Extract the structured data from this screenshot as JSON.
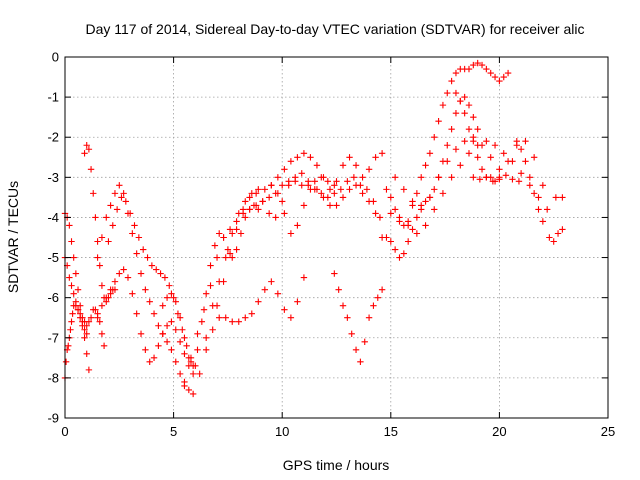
{
  "chart_data": {
    "type": "scatter",
    "title": "Day 117 of 2014, Sidereal Day-to-day VTEC variation (SDTVAR) for receiver alic",
    "xlabel": "GPS time / hours",
    "ylabel": "SDTVAR / TECUs",
    "xlim": [
      0,
      25
    ],
    "ylim": [
      -9,
      0
    ],
    "x_ticks": [
      "0",
      "5",
      "10",
      "15",
      "20",
      "25"
    ],
    "y_ticks": [
      "0",
      "-1",
      "-2",
      "-3",
      "-4",
      "-5",
      "-6",
      "-7",
      "-8",
      "-9"
    ],
    "grid": true,
    "legend": "none",
    "marker": "plus",
    "color": "#ff0000",
    "series": [
      {
        "x": [
          0.0,
          0.05,
          0.1,
          0.15,
          0.2,
          0.25,
          0.3,
          0.35,
          0.4,
          0.5,
          0.6,
          0.7,
          0.8,
          0.9,
          1.0,
          1.1,
          1.2,
          1.3,
          1.4,
          1.5,
          1.6,
          1.7,
          1.8
        ],
        "y": [
          -8.0,
          -7.6,
          -7.3,
          -7.2,
          -7.0,
          -6.8,
          -6.6,
          -6.4,
          -6.2,
          -6.2,
          -6.3,
          -6.4,
          -6.5,
          -6.6,
          -6.7,
          -6.6,
          -6.5,
          -6.3,
          -6.3,
          -6.4,
          -6.6,
          -6.9,
          -7.2
        ]
      },
      {
        "x": [
          0.0,
          0.1,
          0.2,
          0.3,
          0.4,
          0.5,
          0.6,
          0.7,
          0.8,
          0.9,
          1.0,
          1.1
        ],
        "y": [
          -3.9,
          -4.0,
          -4.2,
          -4.6,
          -5.0,
          -5.4,
          -5.8,
          -6.2,
          -6.6,
          -7.0,
          -7.4,
          -7.8
        ]
      },
      {
        "x": [
          0.0,
          0.1,
          0.2,
          0.3,
          0.4,
          0.5,
          0.6,
          0.7,
          0.8,
          0.9,
          1.0
        ],
        "y": [
          -5.0,
          -5.2,
          -5.5,
          -5.7,
          -5.9,
          -6.1,
          -6.3,
          -6.5,
          -6.7,
          -6.8,
          -6.9
        ]
      },
      {
        "x": [
          0.9,
          1.0,
          1.1,
          1.2,
          1.3,
          1.4,
          1.5,
          1.6,
          1.7,
          1.8,
          1.9,
          2.0,
          2.1,
          2.2,
          2.3
        ],
        "y": [
          -2.4,
          -2.2,
          -2.3,
          -2.8,
          -3.4,
          -4.0,
          -4.6,
          -5.2,
          -5.7,
          -6.0,
          -6.1,
          -6.0,
          -5.9,
          -5.8,
          -5.8
        ]
      },
      {
        "x": [
          1.5,
          1.7,
          1.9,
          2.1,
          2.3,
          2.5,
          2.7,
          2.9,
          3.1,
          3.3,
          3.5,
          3.7,
          3.9,
          4.1,
          4.3,
          4.5,
          4.7,
          4.9,
          5.1,
          5.3,
          5.5,
          5.7,
          5.9
        ],
        "y": [
          -5.0,
          -4.5,
          -4.0,
          -3.7,
          -3.4,
          -3.2,
          -3.4,
          -3.9,
          -4.4,
          -4.9,
          -5.4,
          -5.8,
          -6.1,
          -6.4,
          -6.7,
          -6.9,
          -7.1,
          -7.3,
          -7.6,
          -7.9,
          -8.1,
          -8.3,
          -8.4
        ]
      },
      {
        "x": [
          2.0,
          2.2,
          2.4,
          2.6,
          2.8,
          3.0,
          3.2,
          3.4,
          3.6,
          3.8,
          4.0,
          4.2,
          4.4,
          4.6,
          4.8,
          5.0,
          5.2,
          5.4,
          5.6,
          5.8,
          6.0
        ],
        "y": [
          -4.6,
          -4.2,
          -3.8,
          -3.5,
          -3.6,
          -3.9,
          -4.2,
          -4.5,
          -4.8,
          -5.0,
          -5.2,
          -5.3,
          -5.4,
          -5.5,
          -5.7,
          -6.0,
          -6.4,
          -6.8,
          -7.2,
          -7.5,
          -7.7
        ]
      },
      {
        "x": [
          1.5,
          1.7,
          1.9,
          2.1,
          2.3,
          2.5,
          2.7,
          2.9,
          3.1,
          3.3,
          3.5,
          3.7,
          3.9,
          4.1,
          4.3,
          4.5,
          4.7,
          4.9,
          5.1,
          5.3,
          5.5,
          5.7,
          5.9
        ],
        "y": [
          -6.5,
          -6.2,
          -6.0,
          -5.8,
          -5.6,
          -5.4,
          -5.3,
          -5.5,
          -5.9,
          -6.4,
          -6.9,
          -7.3,
          -7.6,
          -7.5,
          -7.2,
          -6.9,
          -6.7,
          -6.6,
          -6.8,
          -7.1,
          -7.4,
          -7.7,
          -7.9
        ]
      },
      {
        "x": [
          4.5,
          4.7,
          4.9,
          5.1,
          5.3,
          5.5,
          5.7,
          5.9,
          6.1,
          6.3,
          6.5,
          6.7,
          6.9,
          7.1,
          7.3,
          7.5,
          7.7,
          7.9,
          8.1,
          8.3,
          8.5,
          8.7,
          8.9
        ],
        "y": [
          -6.2,
          -6.0,
          -5.9,
          -6.1,
          -6.5,
          -7.0,
          -7.5,
          -7.7,
          -7.3,
          -6.6,
          -5.9,
          -5.2,
          -4.7,
          -4.4,
          -4.5,
          -4.8,
          -5.0,
          -4.8,
          -4.4,
          -4.0,
          -3.8,
          -3.7,
          -3.8
        ]
      },
      {
        "x": [
          5.5,
          5.8,
          6.1,
          6.4,
          6.7,
          7.0,
          7.3,
          7.6,
          7.9,
          8.2,
          8.5,
          8.8,
          9.1,
          9.4,
          9.7,
          10.0,
          10.3,
          10.6,
          10.9,
          11.2,
          11.5,
          11.8,
          12.1,
          12.4
        ],
        "y": [
          -8.2,
          -7.6,
          -6.9,
          -6.3,
          -5.7,
          -5.0,
          -4.5,
          -4.3,
          -4.1,
          -3.9,
          -3.8,
          -3.7,
          -3.6,
          -3.5,
          -3.4,
          -3.2,
          -3.1,
          -3.1,
          -3.2,
          -3.2,
          -3.1,
          -3.0,
          -3.1,
          -3.2
        ]
      },
      {
        "x": [
          6.2,
          6.5,
          6.8,
          7.1,
          7.4,
          7.7,
          8.0,
          8.3,
          8.6,
          8.9,
          9.2,
          9.5,
          9.8,
          10.1,
          10.4,
          10.7,
          11.0,
          11.3,
          11.6,
          11.9,
          12.2,
          12.5,
          12.8,
          13.1,
          13.4,
          13.7,
          14.0,
          14.3,
          14.6
        ],
        "y": [
          -7.9,
          -7.0,
          -6.2,
          -5.6,
          -5.0,
          -4.4,
          -3.9,
          -3.6,
          -3.4,
          -3.3,
          -3.3,
          -3.2,
          -3.0,
          -2.8,
          -2.6,
          -2.5,
          -2.4,
          -2.5,
          -2.7,
          -3.0,
          -3.3,
          -3.1,
          -2.7,
          -2.5,
          -2.7,
          -3.0,
          -2.8,
          -2.5,
          -2.4
        ]
      },
      {
        "x": [
          6.5,
          6.8,
          7.1,
          7.4,
          7.7,
          8.0,
          8.3,
          8.6,
          8.9,
          9.2,
          9.5,
          9.8,
          10.1,
          10.4,
          10.7,
          11.0
        ],
        "y": [
          -7.3,
          -6.8,
          -6.5,
          -6.5,
          -6.6,
          -6.6,
          -6.5,
          -6.4,
          -6.1,
          -5.8,
          -5.6,
          -5.9,
          -6.3,
          -6.5,
          -6.1,
          -5.5
        ]
      },
      {
        "x": [
          7.0,
          7.3,
          7.6,
          7.9,
          8.2,
          8.5,
          8.8,
          9.1,
          9.4,
          9.7,
          10.0,
          10.3,
          10.6,
          10.9,
          11.2,
          11.5,
          11.8,
          12.1,
          12.4,
          12.7,
          13.0,
          13.3,
          13.6,
          13.9,
          14.2,
          14.5
        ],
        "y": [
          -6.2,
          -5.6,
          -4.9,
          -4.3,
          -3.8,
          -3.5,
          -3.4,
          -3.6,
          -3.9,
          -4.0,
          -3.6,
          -3.2,
          -3.0,
          -2.9,
          -3.1,
          -3.3,
          -3.4,
          -3.5,
          -3.4,
          -3.3,
          -3.1,
          -3.0,
          -3.2,
          -3.3,
          -3.6,
          -4.0
        ]
      },
      {
        "x": [
          9.5,
          9.8,
          10.1,
          10.4,
          10.7,
          11.0,
          11.3,
          11.6,
          11.9,
          12.2,
          12.5,
          12.8,
          13.1,
          13.4,
          13.7,
          14.0,
          14.3,
          14.6
        ],
        "y": [
          -3.2,
          -3.4,
          -3.9,
          -4.4,
          -4.2,
          -3.7,
          -3.3,
          -3.3,
          -3.5,
          -3.7,
          -3.7,
          -3.5,
          -3.3,
          -3.2,
          -3.4,
          -3.6,
          -3.9,
          -4.5
        ]
      },
      {
        "x": [
          12.4,
          12.6,
          12.8,
          13.0,
          13.2,
          13.4,
          13.6,
          13.8,
          14.0,
          14.2,
          14.4,
          14.6
        ],
        "y": [
          -5.4,
          -5.8,
          -6.2,
          -6.5,
          -6.9,
          -7.3,
          -7.6,
          -7.1,
          -6.5,
          -6.2,
          -6.0,
          -5.8
        ]
      },
      {
        "x": [
          14.8,
          15.0,
          15.2,
          15.4,
          15.6,
          15.8,
          16.0,
          16.2,
          16.4,
          16.6,
          16.8,
          17.0,
          17.2,
          17.4,
          17.6,
          17.8,
          18.0,
          18.2,
          18.4,
          18.6,
          18.8,
          19.0,
          19.2,
          19.4,
          19.6,
          19.8,
          20.0,
          20.2,
          20.4
        ],
        "y": [
          -3.3,
          -3.5,
          -3.8,
          -4.0,
          -4.2,
          -4.1,
          -3.7,
          -3.4,
          -3.0,
          -2.7,
          -2.4,
          -2.0,
          -1.6,
          -1.2,
          -0.9,
          -0.6,
          -0.4,
          -0.3,
          -0.3,
          -0.3,
          -0.2,
          -0.15,
          -0.2,
          -0.3,
          -0.4,
          -0.5,
          -0.6,
          -0.5,
          -0.4
        ]
      },
      {
        "x": [
          14.8,
          15.0,
          15.2,
          15.4,
          15.6,
          15.8,
          16.0,
          16.2,
          16.4,
          16.6,
          16.8,
          17.0,
          17.2,
          17.4,
          17.6,
          17.8,
          18.0,
          18.2,
          18.4,
          18.6,
          18.8,
          19.0
        ],
        "y": [
          -4.5,
          -4.6,
          -4.8,
          -5.0,
          -4.9,
          -4.6,
          -4.3,
          -4.0,
          -3.8,
          -3.6,
          -3.5,
          -3.3,
          -3.0,
          -2.6,
          -2.2,
          -1.8,
          -1.4,
          -1.1,
          -1.0,
          -1.2,
          -1.5,
          -1.8
        ]
      },
      {
        "x": [
          15.0,
          15.4,
          15.8,
          16.2,
          16.6,
          17.0,
          17.4,
          17.8,
          18.2,
          18.6,
          19.0,
          19.4,
          19.8,
          20.2,
          20.6,
          21.0,
          21.4,
          21.8,
          22.2,
          22.6,
          22.9
        ],
        "y": [
          -3.9,
          -4.1,
          -4.2,
          -4.4,
          -4.2,
          -3.8,
          -3.4,
          -3.0,
          -2.7,
          -2.4,
          -2.2,
          -2.1,
          -2.2,
          -2.4,
          -2.6,
          -2.9,
          -3.2,
          -3.5,
          -3.8,
          -3.5,
          -3.5
        ]
      },
      {
        "x": [
          15.2,
          15.6,
          16.0,
          16.4,
          16.8,
          17.2,
          17.6,
          18.0,
          18.4,
          18.8,
          19.2,
          19.6,
          20.0,
          20.4,
          20.8,
          21.2,
          21.6,
          22.0
        ],
        "y": [
          -3.0,
          -3.3,
          -3.6,
          -3.7,
          -3.5,
          -3.0,
          -2.6,
          -2.3,
          -2.1,
          -2.0,
          -2.2,
          -2.5,
          -2.8,
          -2.6,
          -2.2,
          -2.1,
          -2.5,
          -3.2
        ]
      },
      {
        "x": [
          18.0,
          18.2,
          18.4,
          18.6,
          18.8,
          19.0,
          19.2,
          19.4,
          19.6,
          19.8,
          20.0
        ],
        "y": [
          -0.9,
          -1.1,
          -1.4,
          -1.8,
          -2.1,
          -2.5,
          -2.8,
          -3.0,
          -3.0,
          -3.1,
          -3.0
        ]
      },
      {
        "x": [
          18.8,
          19.1,
          19.4,
          19.7,
          20.0,
          20.3,
          20.6,
          20.9
        ],
        "y": [
          -3.0,
          -3.05,
          -3.0,
          -3.1,
          -3.05,
          -2.95,
          -3.05,
          -3.1
        ]
      },
      {
        "x": [
          20.8,
          21.0,
          21.2,
          21.4,
          21.6,
          21.8,
          22.0
        ],
        "y": [
          -2.1,
          -2.3,
          -2.6,
          -3.0,
          -3.4,
          -3.8,
          -4.1
        ]
      },
      {
        "x": [
          22.3,
          22.5,
          22.7,
          22.9
        ],
        "y": [
          -4.5,
          -4.6,
          -4.4,
          -4.3
        ]
      }
    ]
  }
}
